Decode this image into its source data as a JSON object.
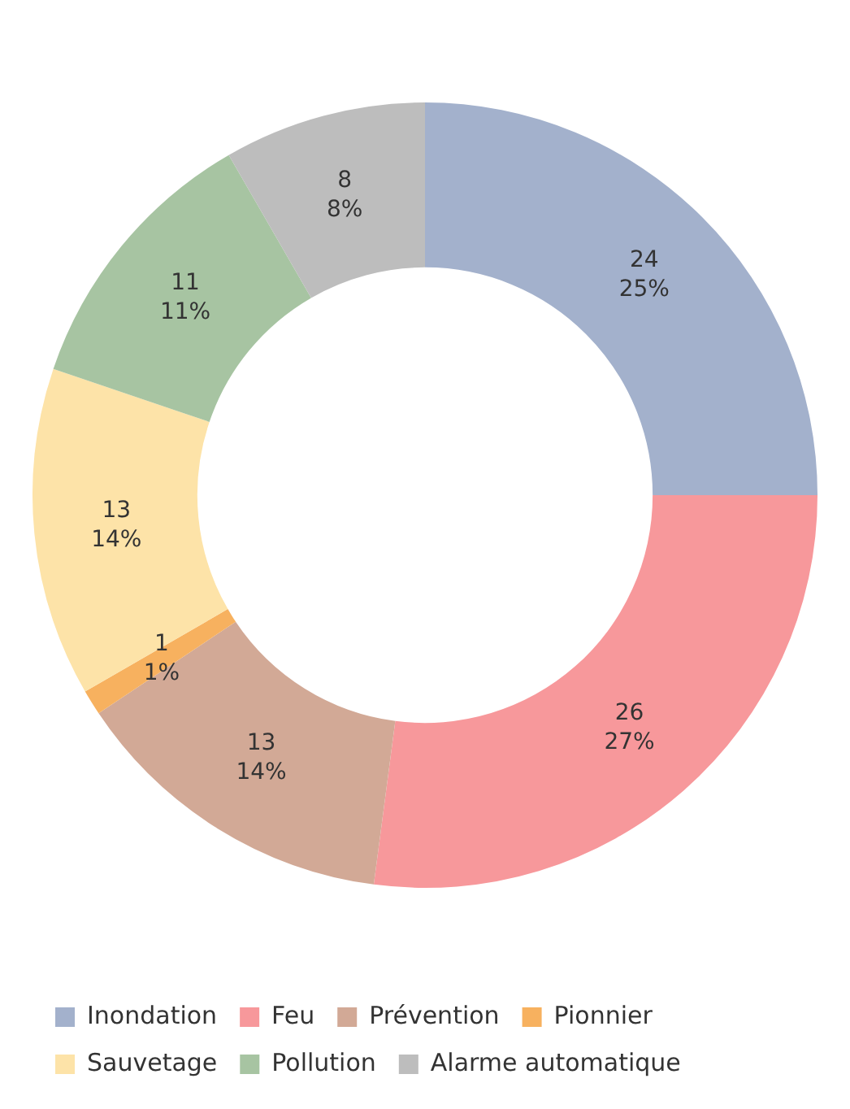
{
  "chart_data": {
    "type": "donut",
    "categories": [
      "Inondation",
      "Feu",
      "Prévention",
      "Pionnier",
      "Sauvetage",
      "Pollution",
      "Alarme automatique"
    ],
    "values": [
      24,
      26,
      13,
      1,
      13,
      11,
      8
    ],
    "colors": [
      "#a3b1cc",
      "#f7989b",
      "#d2a996",
      "#f7b15f",
      "#fde3a8",
      "#a7c4a2",
      "#bdbdbd"
    ],
    "value_labels": [
      "24\n25%",
      "26\n27%",
      "13\n14%",
      "1\n1%",
      "13\n14%",
      "11\n11%",
      "8\n8%"
    ],
    "legend": "bottom"
  }
}
